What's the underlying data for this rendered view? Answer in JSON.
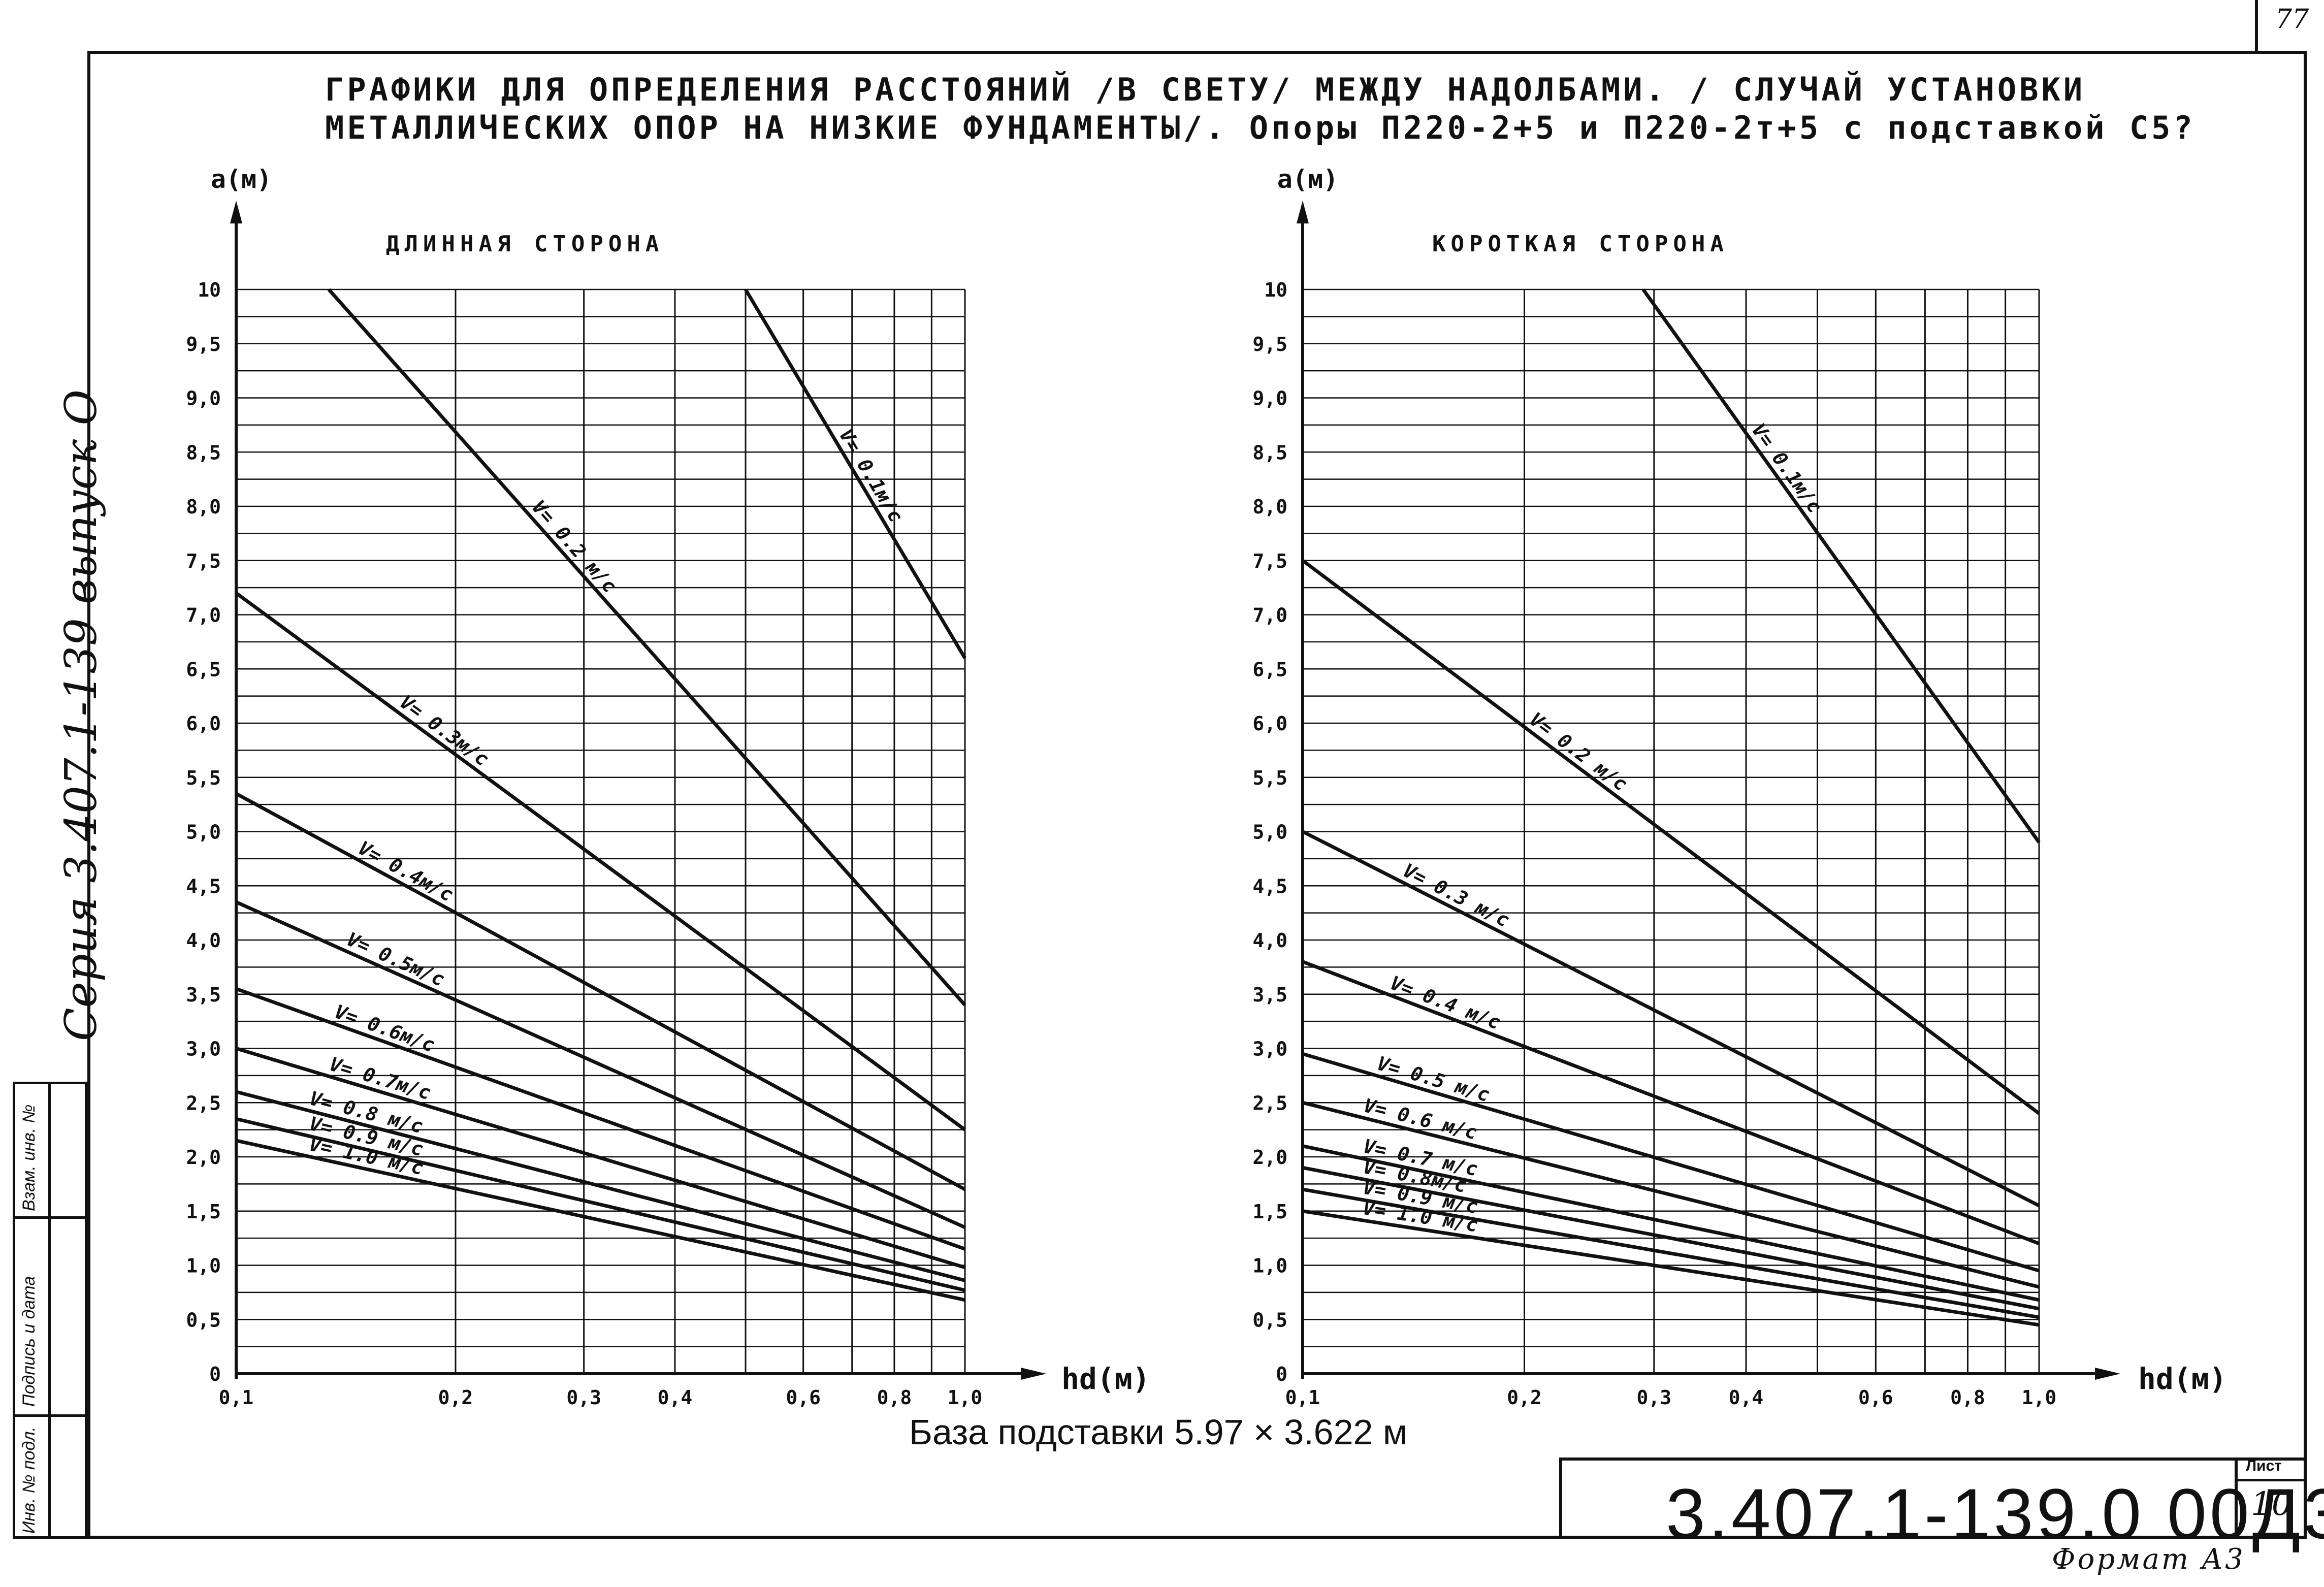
{
  "page": {
    "title_line1": "ГРАФИКИ ДЛЯ  ОПРЕДЕЛЕНИЯ  РАССТОЯНИЙ /В СВЕТУ/ МЕЖДУ  НАДОЛБАМИ. / СЛУЧАЙ  УСТАНОВКИ",
    "title_line2": "МЕТАЛЛИЧЕСКИХ  ОПОР НА НИЗКИЕ  ФУНДАМЕНТЫ/.  Опоры  П220-2+5  и П220-2т+5 с подставкой С5?",
    "sidebar_series": "Серия  3.407.1-139  выпуск О",
    "stamp_labels": [
      "Инв. № подл.",
      "Подпись и дата",
      "Взам. инв. №"
    ],
    "base_caption": "База    подставки  5.97 × 3.622 м",
    "doc_code": "3.407.1-139.0  00Д3",
    "sheet_label": "Лист",
    "sheet_number": "10",
    "page_number": "77",
    "format": "Формат А3"
  },
  "colors": {
    "ink": "#111111",
    "paper": "#ffffff"
  },
  "chart_data": [
    {
      "type": "line",
      "panel_title": "ДЛИННАЯ   СТОРОНА",
      "xlabel": "hd(м)",
      "ylabel": "a(м)",
      "x_scale": "log",
      "xlim": [
        0.1,
        1.0
      ],
      "ylim": [
        0,
        10
      ],
      "x_ticks": [
        0.1,
        0.2,
        0.3,
        0.4,
        0.6,
        0.8,
        1.0
      ],
      "x_tick_labels": [
        "0,1",
        "0,2",
        "0,3",
        "0,4",
        "0,6",
        "0,8",
        "1,0"
      ],
      "x_grid": [
        0.1,
        0.2,
        0.3,
        0.4,
        0.5,
        0.6,
        0.7,
        0.8,
        0.9,
        1.0
      ],
      "y_ticks": [
        0,
        0.5,
        1.0,
        1.5,
        2.0,
        2.5,
        3.0,
        3.5,
        4.0,
        4.5,
        5.0,
        5.5,
        6.0,
        6.5,
        7.0,
        7.5,
        8.0,
        8.5,
        9.0,
        9.5,
        10
      ],
      "y_tick_labels": [
        "0",
        "0,5",
        "1,0",
        "1,5",
        "2,0",
        "2,5",
        "3,0",
        "3,5",
        "4,0",
        "4,5",
        "5,0",
        "5,5",
        "6,0",
        "6,5",
        "7,0",
        "7,5",
        "8,0",
        "8,5",
        "9,0",
        "9,5",
        "10"
      ],
      "y_minor_step": 0.25,
      "grid": true,
      "series": [
        {
          "name": "V= 0.1м/с",
          "points": [
            [
              0.5,
              10.0
            ],
            [
              1.0,
              6.6
            ]
          ],
          "label_at": 0.66
        },
        {
          "name": "V= 0.2 м/с",
          "points": [
            [
              0.134,
              10.0
            ],
            [
              1.0,
              3.4
            ]
          ],
          "label_at": 0.25
        },
        {
          "name": "V= 0.3м/с",
          "points": [
            [
              0.1,
              7.2
            ],
            [
              1.0,
              2.25
            ]
          ],
          "label_at": 0.165
        },
        {
          "name": "V= 0.4м/с",
          "points": [
            [
              0.1,
              5.35
            ],
            [
              1.0,
              1.7
            ]
          ],
          "label_at": 0.145
        },
        {
          "name": "V= 0.5м/с",
          "points": [
            [
              0.1,
              4.35
            ],
            [
              1.0,
              1.35
            ]
          ],
          "label_at": 0.14
        },
        {
          "name": "V= 0.6м/с",
          "points": [
            [
              0.1,
              3.55
            ],
            [
              1.0,
              1.15
            ]
          ],
          "label_at": 0.135
        },
        {
          "name": "V= 0.7м/с",
          "points": [
            [
              0.1,
              3.0
            ],
            [
              1.0,
              0.98
            ]
          ],
          "label_at": 0.133
        },
        {
          "name": "V= 0.8 м/с",
          "points": [
            [
              0.1,
              2.6
            ],
            [
              1.0,
              0.86
            ]
          ],
          "label_at": 0.125
        },
        {
          "name": "V= 0.9 м/с",
          "points": [
            [
              0.1,
              2.35
            ],
            [
              1.0,
              0.77
            ]
          ],
          "label_at": 0.125
        },
        {
          "name": "V= 1.0 м/с",
          "points": [
            [
              0.1,
              2.15
            ],
            [
              1.0,
              0.68
            ]
          ],
          "label_at": 0.125
        }
      ]
    },
    {
      "type": "line",
      "panel_title": "КОРОТКАЯ   СТОРОНА",
      "xlabel": "hd(м)",
      "ylabel": "a(м)",
      "x_scale": "log",
      "xlim": [
        0.1,
        1.0
      ],
      "ylim": [
        0,
        10
      ],
      "x_ticks": [
        0.1,
        0.2,
        0.3,
        0.4,
        0.6,
        0.8,
        1.0
      ],
      "x_tick_labels": [
        "0,1",
        "0,2",
        "0,3",
        "0,4",
        "0,6",
        "0,8",
        "1,0"
      ],
      "x_grid": [
        0.1,
        0.2,
        0.3,
        0.4,
        0.5,
        0.6,
        0.7,
        0.8,
        0.9,
        1.0
      ],
      "y_ticks": [
        0,
        0.5,
        1.0,
        1.5,
        2.0,
        2.5,
        3.0,
        3.5,
        4.0,
        4.5,
        5.0,
        5.5,
        6.0,
        6.5,
        7.0,
        7.5,
        8.0,
        8.5,
        9.0,
        9.5,
        10
      ],
      "y_tick_labels": [
        "0",
        "0,5",
        "1,0",
        "1,5",
        "2,0",
        "2,5",
        "3,0",
        "3,5",
        "4,0",
        "4,5",
        "5,0",
        "5,5",
        "6,0",
        "6,5",
        "7,0",
        "7,5",
        "8,0",
        "8,5",
        "9,0",
        "9,5",
        "10"
      ],
      "y_minor_step": 0.25,
      "grid": true,
      "series": [
        {
          "name": "V= 0.1м/с",
          "points": [
            [
              0.29,
              10.0
            ],
            [
              1.0,
              4.9
            ]
          ],
          "label_at": 0.4
        },
        {
          "name": "V= 0.2 м/с",
          "points": [
            [
              0.1,
              7.5
            ],
            [
              1.0,
              2.4
            ]
          ],
          "label_at": 0.2
        },
        {
          "name": "V= 0.3 м/с",
          "points": [
            [
              0.1,
              5.0
            ],
            [
              1.0,
              1.55
            ]
          ],
          "label_at": 0.135
        },
        {
          "name": "V= 0.4 м/с",
          "points": [
            [
              0.1,
              3.8
            ],
            [
              1.0,
              1.2
            ]
          ],
          "label_at": 0.13
        },
        {
          "name": "V= 0.5 м/с",
          "points": [
            [
              0.1,
              2.95
            ],
            [
              1.0,
              0.95
            ]
          ],
          "label_at": 0.125
        },
        {
          "name": "V= 0.6 м/с",
          "points": [
            [
              0.1,
              2.5
            ],
            [
              1.0,
              0.8
            ]
          ],
          "label_at": 0.12
        },
        {
          "name": "V= 0.7 м/с",
          "points": [
            [
              0.1,
              2.1
            ],
            [
              1.0,
              0.68
            ]
          ],
          "label_at": 0.12
        },
        {
          "name": "V= 0.8м/с",
          "points": [
            [
              0.1,
              1.9
            ],
            [
              1.0,
              0.6
            ]
          ],
          "label_at": 0.12
        },
        {
          "name": "V= 0.9 м/с",
          "points": [
            [
              0.1,
              1.7
            ],
            [
              1.0,
              0.52
            ]
          ],
          "label_at": 0.12
        },
        {
          "name": "V= 1.0 м/с",
          "points": [
            [
              0.1,
              1.5
            ],
            [
              1.0,
              0.45
            ]
          ],
          "label_at": 0.12
        }
      ]
    }
  ]
}
